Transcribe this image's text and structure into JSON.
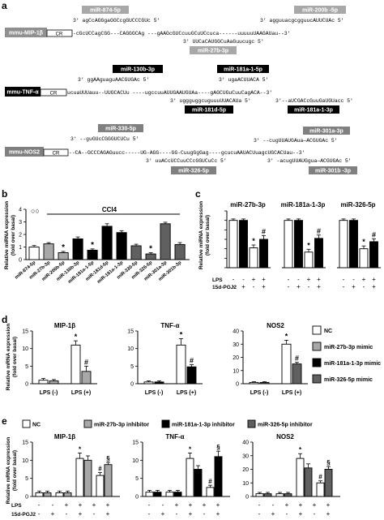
{
  "panel_a": {
    "label": "a",
    "genes": [
      {
        "name": "mmu-MIP-1β",
        "cr": "CR",
        "mirs_top": [
          "miR-874-5p",
          "miR-200b -5p"
        ],
        "mirs_bottom": [
          "miR-27b-3p"
        ],
        "seq_lines": [
          "3' agCcAGGgaGGCcgGUCCCGUc 5'",
          "3' agguuacgcgguucAUUCUAc 5'",
          "-cGcUCCagCGG---CAGGGCAg ---gAAGcGUCcuuGCuUCcuca------uuuuuUAAGAUau--3'",
          "3' UUCaCAUGGCuAaGuucugc 5'"
        ]
      },
      {
        "name": "mmu-TNF-α",
        "cr": "CR",
        "mirs_top": [
          "miR-130b-3p",
          "miR-181a-1-5p"
        ],
        "mirs_bottom": [
          "miR-181d-5p",
          "miR-181a-1-3p"
        ],
        "seq_lines": [
          "3' ggAAguaguAACGUGAc 5'",
          "3' ugaACUUACA 5'",
          "ucuaUUUauu--UUGCACUu ----ugccuuAUUGAAUGUAa----gAGCUGuCuuCagACA--3'",
          "3' uggguggcuguuuUUACAUa 5'",
          "3'--aUCGACcGuuGaUGUacc 5'"
        ]
      },
      {
        "name": "mmu-NOS2",
        "cr": "CR",
        "mirs_top": [
          "miR-330-5p",
          "miR-301a-3p"
        ],
        "mirs_bottom": [
          "miR-326-5p",
          "miR-301b -3p"
        ],
        "seq_lines": [
          "3' --guGUcCGGGUCUCu 5'",
          "3' --cugUUAUGAua—ACGUGAc 5'",
          "--CA--GCCCAGAGuucc-----UG-AGG----GG-CuugGgGag----gcucuAAUACUuagcUGCACUau--3'",
          "3' uuACcUCCuuCCcGGUCuCc 5'",
          "3' -acugUUAUGgua—ACGUGAc 5'"
        ]
      }
    ]
  },
  "panel_b": {
    "label": "b",
    "ylabel": "Relative miRNA expression (fold over basal)",
    "group_label": "CCl4",
    "chart_data": {
      "type": "bar",
      "title": "",
      "ylabel": "Relative miRNA expression (fold over basal)",
      "ylim": [
        0,
        4
      ],
      "yticks": [
        "0",
        "1",
        "2",
        "3",
        "4"
      ],
      "categories": [
        "miR-874-5p",
        "miR-27b-3p",
        "miR-200b-5p",
        "miR-130b-3p",
        "miR-181a-1-5p",
        "miR-181d-5p",
        "miR-181a-1-3p",
        "miR-330-5p",
        "miR-326-5p",
        "miR-301a-3p",
        "miR-301b-3p"
      ],
      "series": [
        {
          "name": "",
          "color": "#ffffff",
          "values": [
            1.0,
            1.0,
            1.0,
            1.0,
            1.0,
            1.0,
            1.0,
            1.0,
            1.0,
            1.0,
            1.0
          ],
          "errors": [
            0.12,
            0.1,
            0.12,
            0.15,
            0.1,
            0.1,
            0.1,
            0.12,
            0.1,
            0.1,
            0.1
          ]
        },
        {
          "name": "CCl4",
          "color": "#808080",
          "values": [
            1.0,
            1.25,
            0.55,
            1.65,
            0.75,
            2.65,
            2.15,
            1.1,
            0.45,
            2.85,
            1.2
          ],
          "errors": [
            0.12,
            0.1,
            0.1,
            0.15,
            0.1,
            0.2,
            0.15,
            0.12,
            0.1,
            0.12,
            0.15
          ]
        }
      ],
      "significant": [
        false,
        false,
        true,
        false,
        true,
        false,
        false,
        false,
        true,
        false,
        false
      ],
      "baseline_markers": "○○"
    }
  },
  "panel_c": {
    "label": "c",
    "ylabel": "Relative miRNA expression (fold over basal)",
    "row_labels": [
      "LPS",
      "15d-PGJ2"
    ],
    "chart_data": [
      {
        "type": "bar",
        "title": "miR-27b-3p",
        "ylim": [
          0,
          1.2
        ],
        "yticks": [
          "0",
          "0.2",
          "0.4",
          "0.6",
          "0.8",
          "1.0",
          "1.2"
        ],
        "categories": [
          "LPS -/15d -",
          "LPS -/15d +",
          "LPS +/15d -",
          "LPS +/15d +"
        ],
        "values": [
          1.0,
          1.0,
          0.42,
          0.6
        ],
        "errors": [
          0.03,
          0.03,
          0.06,
          0.08
        ],
        "marks": [
          "",
          "",
          "*",
          "#"
        ],
        "lps": [
          "-",
          "-",
          "+",
          "+"
        ],
        "pgj": [
          "-",
          "+",
          "-",
          "+"
        ]
      },
      {
        "type": "bar",
        "title": "miR-181a-1-3p",
        "ylim": [
          0,
          1.2
        ],
        "categories": [
          "LPS -/15d -",
          "LPS -/15d +",
          "LPS +/15d -",
          "LPS +/15d +"
        ],
        "values": [
          1.0,
          1.0,
          0.33,
          0.62
        ],
        "errors": [
          0.03,
          0.03,
          0.06,
          0.07
        ],
        "marks": [
          "",
          "",
          "*",
          "#"
        ],
        "lps": [
          "-",
          "-",
          "+",
          "+"
        ],
        "pgj": [
          "-",
          "+",
          "-",
          "+"
        ]
      },
      {
        "type": "bar",
        "title": "miR-326-5p",
        "ylim": [
          0,
          1.2
        ],
        "categories": [
          "LPS -/15d -",
          "LPS -/15d +",
          "LPS +/15d -",
          "LPS +/15d +"
        ],
        "values": [
          1.0,
          1.0,
          0.4,
          0.55
        ],
        "errors": [
          0.03,
          0.03,
          0.06,
          0.06
        ],
        "marks": [
          "",
          "",
          "*",
          "#"
        ],
        "lps": [
          "-",
          "-",
          "+",
          "+"
        ],
        "pgj": [
          "-",
          "+",
          "-",
          "+"
        ]
      }
    ]
  },
  "panel_d": {
    "label": "d",
    "ylabel": "Relative mRNA expression (fold over basal)",
    "legend": [
      {
        "name": "NC",
        "color": "#ffffff"
      },
      {
        "name": "miR-27b-3p mimic",
        "color": "#a8a8a8"
      },
      {
        "name": "miR-181a-1-3p mimic",
        "color": "#000000"
      },
      {
        "name": "miR-326-5p mimic",
        "color": "#606060"
      }
    ],
    "chart_data": [
      {
        "type": "bar",
        "title": "MIP-1β",
        "ylim": [
          0,
          15
        ],
        "yticks": [
          "0",
          "5",
          "10",
          "15"
        ],
        "categories": [
          "LPS (-)",
          "LPS (+)"
        ],
        "series": [
          {
            "name": "NC",
            "values": [
              1.0,
              11.0
            ],
            "errors": [
              0.5,
              1.2
            ]
          },
          {
            "name": "miR-27b-3p mimic",
            "values": [
              0.8,
              3.5
            ],
            "errors": [
              0.4,
              1.5
            ]
          }
        ],
        "marks": [
          [
            "",
            "*"
          ],
          [
            "",
            "#"
          ]
        ]
      },
      {
        "type": "bar",
        "title": "TNF-α",
        "ylim": [
          0,
          15
        ],
        "yticks": [
          "0",
          "5",
          "10",
          "15"
        ],
        "categories": [
          "LPS (-)",
          "LPS (+)"
        ],
        "series": [
          {
            "name": "NC",
            "values": [
              0.5,
              11.0
            ],
            "errors": [
              0.3,
              1.8
            ]
          },
          {
            "name": "miR-181a-1-3p mimic",
            "values": [
              0.5,
              4.8
            ],
            "errors": [
              0.3,
              0.6
            ]
          }
        ],
        "marks": [
          [
            "",
            "*"
          ],
          [
            "",
            "#"
          ]
        ]
      },
      {
        "type": "bar",
        "title": "NOS2",
        "ylim": [
          0,
          40
        ],
        "yticks": [
          "0",
          "10",
          "20",
          "30",
          "40"
        ],
        "categories": [
          "LPS (-)",
          "LPS (+)"
        ],
        "series": [
          {
            "name": "NC",
            "values": [
              1.0,
              30.0
            ],
            "errors": [
              0.5,
              3.0
            ]
          },
          {
            "name": "miR-326-5p mimic",
            "values": [
              1.0,
              15.0
            ],
            "errors": [
              0.5,
              1.2
            ]
          }
        ],
        "marks": [
          [
            "",
            "*"
          ],
          [
            "",
            "#"
          ]
        ]
      }
    ]
  },
  "panel_e": {
    "label": "e",
    "ylabel": "Relative mRNA expression (fold over basal)",
    "row_labels": [
      "LPS",
      "15d-PGJ2"
    ],
    "legend": [
      {
        "name": "NC",
        "color": "#ffffff"
      },
      {
        "name": "miR-27b-3p inhibitor",
        "color": "#a8a8a8"
      },
      {
        "name": "miR-181a-1-3p inhibitor",
        "color": "#000000"
      },
      {
        "name": "miR-326-5p inhibitor",
        "color": "#606060"
      }
    ],
    "lps": [
      "-",
      "-",
      "+",
      "+",
      "+",
      "+"
    ],
    "pgj": [
      "-",
      "+",
      "-",
      "+",
      "-",
      "+"
    ],
    "chart_data": [
      {
        "type": "bar",
        "title": "MIP-1β",
        "ylim": [
          0,
          15
        ],
        "yticks": [
          "0",
          "5",
          "10",
          "15"
        ],
        "series": [
          {
            "name": "NC",
            "values": [
              1.0,
              1.0,
              10.5,
              5.8
            ],
            "errors": [
              0.5,
              0.5,
              1.5,
              0.8
            ]
          },
          {
            "name": "miR-27b-3p inhibitor",
            "values": [
              1.0,
              1.0,
              10.0,
              8.8
            ],
            "errors": [
              0.5,
              0.5,
              1.2,
              0.6
            ]
          }
        ],
        "marks": [
          "",
          "",
          "*",
          "#",
          "",
          "§"
        ]
      },
      {
        "type": "bar",
        "title": "TNF-α",
        "ylim": [
          0,
          15
        ],
        "yticks": [
          "0",
          "5",
          "10",
          "15"
        ],
        "series": [
          {
            "name": "NC",
            "values": [
              1.2,
              1.2,
              10.5,
              2.5
            ],
            "errors": [
              0.5,
              0.5,
              1.5,
              0.6
            ]
          },
          {
            "name": "miR-181a-1-3p inhibitor",
            "values": [
              1.2,
              1.2,
              7.5,
              11.0
            ],
            "errors": [
              0.5,
              0.5,
              1.0,
              1.5
            ]
          }
        ],
        "marks": [
          "",
          "",
          "*",
          "#",
          "",
          "§"
        ]
      },
      {
        "type": "bar",
        "title": "NOS2",
        "ylim": [
          0,
          40
        ],
        "yticks": [
          "0",
          "10",
          "20",
          "30",
          "40"
        ],
        "series": [
          {
            "name": "NC",
            "values": [
              2.0,
              2.0,
              28.0,
              10.0
            ],
            "errors": [
              1.0,
              1.0,
              3.5,
              1.5
            ]
          },
          {
            "name": "miR-326-5p inhibitor",
            "values": [
              2.0,
              2.0,
              21.0,
              20.0
            ],
            "errors": [
              1.0,
              1.0,
              3.0,
              2.0
            ]
          }
        ],
        "marks": [
          "",
          "",
          "*",
          "#",
          "",
          "§"
        ]
      }
    ]
  }
}
